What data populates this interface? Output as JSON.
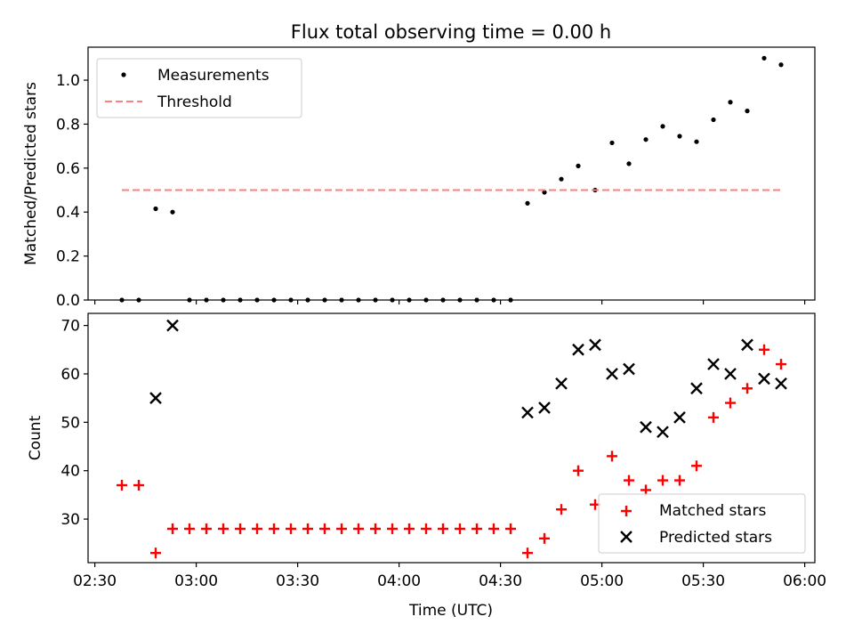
{
  "title": "Flux total observing time = 0.00 h",
  "chart_data": [
    {
      "type": "scatter",
      "ylabel": "Matched/Predicted stars",
      "ylim": [
        0,
        1.15
      ],
      "xlim": [
        "02:28",
        "06:03"
      ],
      "yticks": [
        "0.0",
        "0.2",
        "0.4",
        "0.6",
        "0.8",
        "1.0"
      ],
      "ytick_values": [
        0,
        0.2,
        0.4,
        0.6,
        0.8,
        1.0
      ],
      "legend_position": "top-left",
      "series": [
        {
          "name": "Measurements",
          "marker": "dot",
          "color": "#000000",
          "points": [
            [
              "02:38",
              0.0
            ],
            [
              "02:43",
              0.0
            ],
            [
              "02:48",
              0.415
            ],
            [
              "02:53",
              0.4
            ],
            [
              "02:58",
              0.0
            ],
            [
              "03:03",
              0.0
            ],
            [
              "03:08",
              0.0
            ],
            [
              "03:13",
              0.0
            ],
            [
              "03:18",
              0.0
            ],
            [
              "03:23",
              0.0
            ],
            [
              "03:28",
              0.0
            ],
            [
              "03:33",
              0.0
            ],
            [
              "03:38",
              0.0
            ],
            [
              "03:43",
              0.0
            ],
            [
              "03:48",
              0.0
            ],
            [
              "03:53",
              0.0
            ],
            [
              "03:58",
              0.0
            ],
            [
              "04:03",
              0.0
            ],
            [
              "04:08",
              0.0
            ],
            [
              "04:13",
              0.0
            ],
            [
              "04:18",
              0.0
            ],
            [
              "04:23",
              0.0
            ],
            [
              "04:28",
              0.0
            ],
            [
              "04:33",
              0.0
            ],
            [
              "04:38",
              0.44
            ],
            [
              "04:43",
              0.49
            ],
            [
              "04:48",
              0.55
            ],
            [
              "04:53",
              0.61
            ],
            [
              "04:58",
              0.5
            ],
            [
              "05:03",
              0.715
            ],
            [
              "05:08",
              0.62
            ],
            [
              "05:13",
              0.73
            ],
            [
              "05:18",
              0.79
            ],
            [
              "05:23",
              0.745
            ],
            [
              "05:28",
              0.72
            ],
            [
              "05:33",
              0.82
            ],
            [
              "05:38",
              0.9
            ],
            [
              "05:43",
              0.86
            ],
            [
              "05:48",
              1.1
            ],
            [
              "05:53",
              1.07
            ]
          ]
        },
        {
          "name": "Threshold",
          "style": "dashed",
          "color": "#ff7f7f",
          "points": [
            [
              "02:38",
              0.5
            ],
            [
              "05:53",
              0.5
            ]
          ]
        }
      ]
    },
    {
      "type": "scatter",
      "xlabel": "Time (UTC)",
      "ylabel": "Count",
      "ylim": [
        21,
        72.5
      ],
      "xlim": [
        "02:28",
        "06:03"
      ],
      "xticks": [
        "02:30",
        "03:00",
        "03:30",
        "04:00",
        "04:30",
        "05:00",
        "05:30",
        "06:00"
      ],
      "yticks": [
        "30",
        "40",
        "50",
        "60",
        "70"
      ],
      "ytick_values": [
        30,
        40,
        50,
        60,
        70
      ],
      "legend_position": "bottom-right",
      "series": [
        {
          "name": "Matched stars",
          "marker": "plus",
          "color": "#ff0000",
          "points": [
            [
              "02:38",
              37
            ],
            [
              "02:43",
              37
            ],
            [
              "02:48",
              23
            ],
            [
              "02:53",
              28
            ],
            [
              "02:58",
              28
            ],
            [
              "03:03",
              28
            ],
            [
              "03:08",
              28
            ],
            [
              "03:13",
              28
            ],
            [
              "03:18",
              28
            ],
            [
              "03:23",
              28
            ],
            [
              "03:28",
              28
            ],
            [
              "03:33",
              28
            ],
            [
              "03:38",
              28
            ],
            [
              "03:43",
              28
            ],
            [
              "03:48",
              28
            ],
            [
              "03:53",
              28
            ],
            [
              "03:58",
              28
            ],
            [
              "04:03",
              28
            ],
            [
              "04:08",
              28
            ],
            [
              "04:13",
              28
            ],
            [
              "04:18",
              28
            ],
            [
              "04:23",
              28
            ],
            [
              "04:28",
              28
            ],
            [
              "04:33",
              28
            ],
            [
              "04:38",
              23
            ],
            [
              "04:43",
              26
            ],
            [
              "04:48",
              32
            ],
            [
              "04:53",
              40
            ],
            [
              "04:58",
              33
            ],
            [
              "05:03",
              43
            ],
            [
              "05:08",
              38
            ],
            [
              "05:13",
              36
            ],
            [
              "05:18",
              38
            ],
            [
              "05:23",
              38
            ],
            [
              "05:28",
              41
            ],
            [
              "05:33",
              51
            ],
            [
              "05:38",
              54
            ],
            [
              "05:43",
              57
            ],
            [
              "05:48",
              65
            ],
            [
              "05:53",
              62
            ]
          ]
        },
        {
          "name": "Predicted stars",
          "marker": "x",
          "color": "#000000",
          "points": [
            [
              "02:48",
              55
            ],
            [
              "02:53",
              70
            ],
            [
              "04:38",
              52
            ],
            [
              "04:43",
              53
            ],
            [
              "04:48",
              58
            ],
            [
              "04:53",
              65
            ],
            [
              "04:58",
              66
            ],
            [
              "05:03",
              60
            ],
            [
              "05:08",
              61
            ],
            [
              "05:13",
              49
            ],
            [
              "05:18",
              48
            ],
            [
              "05:23",
              51
            ],
            [
              "05:28",
              57
            ],
            [
              "05:33",
              62
            ],
            [
              "05:38",
              60
            ],
            [
              "05:43",
              66
            ],
            [
              "05:48",
              59
            ],
            [
              "05:53",
              58
            ]
          ]
        }
      ]
    }
  ]
}
